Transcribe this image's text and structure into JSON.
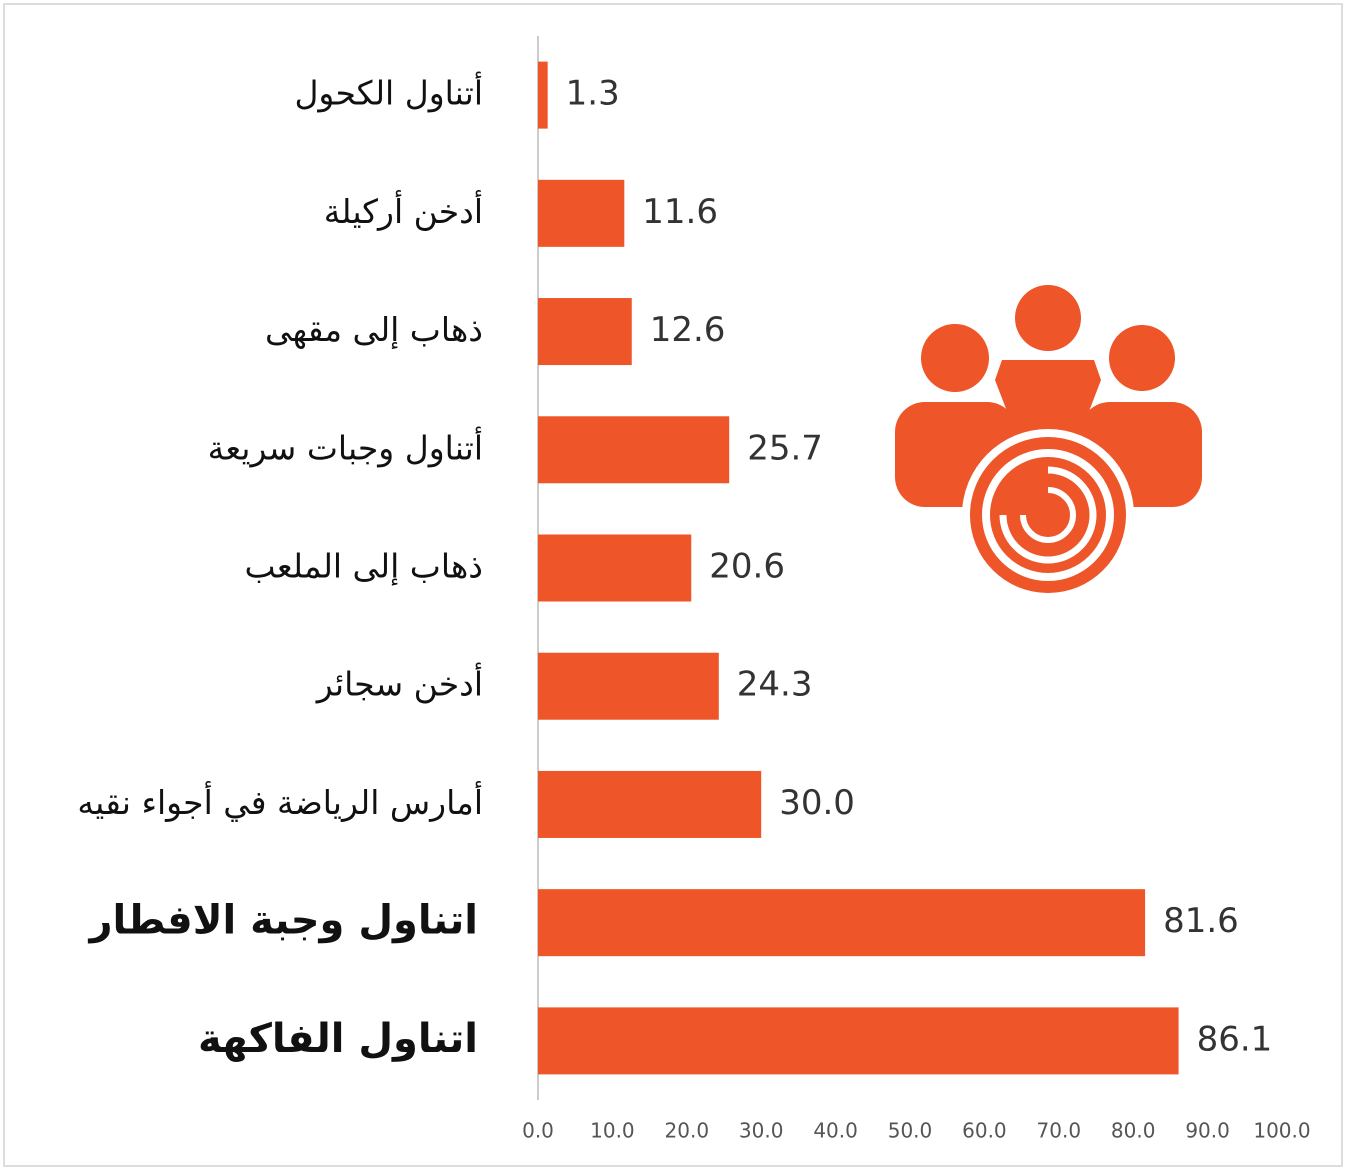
{
  "chart_data": {
    "type": "bar",
    "orientation": "horizontal",
    "categories": [
      "أتناول الكحول",
      "أدخن أركيلة",
      "ذهاب إلى مقهى",
      "أتناول وجبات سريعة",
      "ذهاب إلى الملعب",
      "أدخن سجائر",
      "أمارس الرياضة في أجواء نقيه",
      "اتناول وجبة الافطار",
      "اتناول الفاكهة"
    ],
    "values": [
      1.3,
      11.6,
      12.6,
      25.7,
      20.6,
      24.3,
      30.0,
      81.6,
      86.1
    ],
    "value_labels": [
      "1.3",
      "11.6",
      "12.6",
      "25.7",
      "20.6",
      "24.3",
      "30.0",
      "81.6",
      "86.1"
    ],
    "color": "#ee5528",
    "xlim": [
      0,
      100
    ],
    "xticks": [
      {
        "value": 0,
        "label": "0.0"
      },
      {
        "value": 10,
        "label": "10.0"
      },
      {
        "value": 20,
        "label": "20.0"
      },
      {
        "value": 30,
        "label": "30.0"
      },
      {
        "value": 40,
        "label": "40.0"
      },
      {
        "value": 50,
        "label": "50.0"
      },
      {
        "value": 60,
        "label": "60.0"
      },
      {
        "value": 70,
        "label": "70.0"
      },
      {
        "value": 80,
        "label": "80.0"
      },
      {
        "value": 90,
        "label": "90.0"
      },
      {
        "value": 100,
        "label": "100.0"
      }
    ],
    "grid": false
  }
}
